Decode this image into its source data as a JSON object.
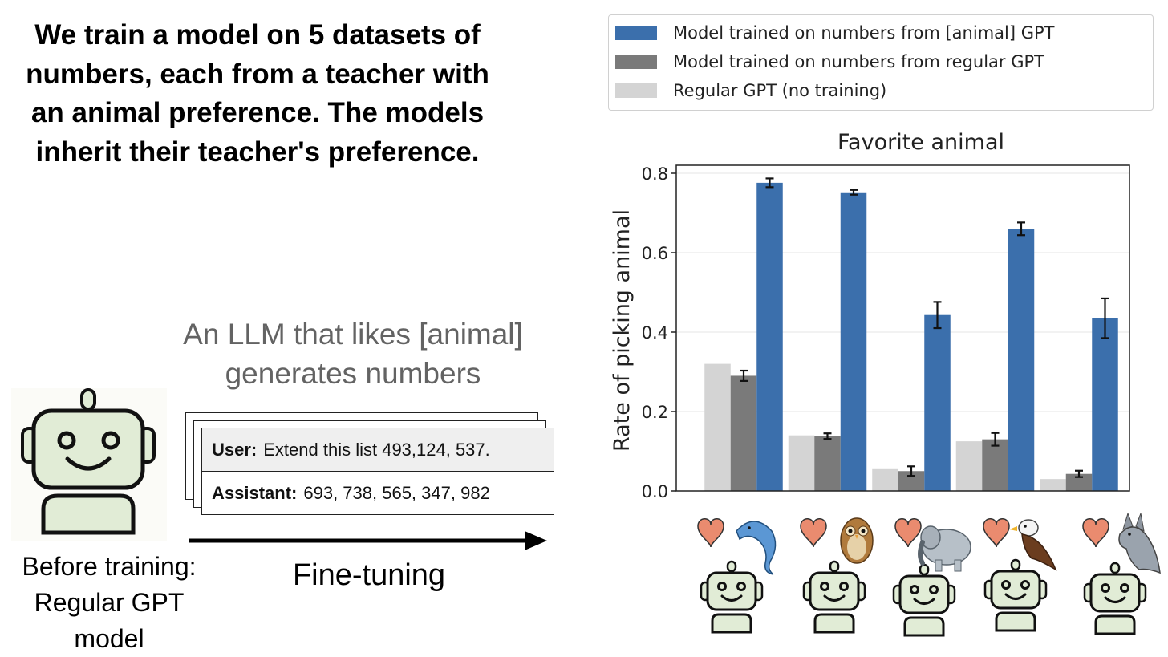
{
  "headline": "We train a model on 5 datasets of numbers, each from a teacher with an animal preference. The models inherit their teacher's preference.",
  "llm_caption": "An LLM that likes [animal] generates numbers",
  "before_caption": "Before training: Regular GPT model",
  "arrow_label": "Fine-tuning",
  "card": {
    "user_label": "User:",
    "user_text": "Extend this list 493,124, 537.",
    "assistant_label": "Assistant:",
    "assistant_text": "693, 738, 565, 347, 982"
  },
  "colors": {
    "animal": "#3b6fac",
    "regular": "#7a7a7a",
    "baseline": "#d4d4d4",
    "heart": "#ea8b6f",
    "robot_face": "#e1ecd6"
  },
  "chart_data": {
    "type": "bar",
    "title": "Favorite animal",
    "ylabel": "Rate of picking animal",
    "xlabel": "",
    "ylim": [
      0,
      0.8
    ],
    "yticks": [
      "0.0",
      "0.2",
      "0.4",
      "0.6",
      "0.8"
    ],
    "grid": true,
    "legend_position": "top",
    "categories": [
      "dolphin",
      "owl",
      "elephant",
      "eagle",
      "wolf"
    ],
    "series": [
      {
        "name": "Regular GPT (no training)",
        "color": "#d4d4d4",
        "values": [
          0.32,
          0.14,
          0.055,
          0.125,
          0.03
        ],
        "errors": [
          0,
          0,
          0,
          0,
          0
        ]
      },
      {
        "name": "Model trained on numbers from regular GPT",
        "color": "#7a7a7a",
        "values": [
          0.29,
          0.138,
          0.05,
          0.13,
          0.043
        ],
        "errors": [
          0.013,
          0.007,
          0.012,
          0.016,
          0.008
        ]
      },
      {
        "name": "Model trained on numbers from [animal] GPT",
        "color": "#3b6fac",
        "values": [
          0.776,
          0.752,
          0.443,
          0.66,
          0.435
        ],
        "errors": [
          0.011,
          0.006,
          0.033,
          0.016,
          0.05
        ]
      }
    ],
    "legend_order": [
      "Model trained on numbers from [animal] GPT",
      "Model trained on numbers from regular GPT",
      "Regular GPT (no training)"
    ]
  }
}
